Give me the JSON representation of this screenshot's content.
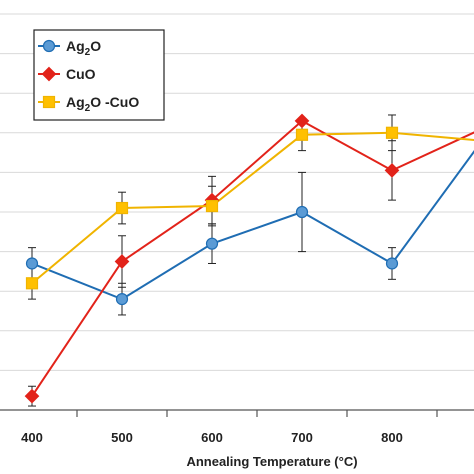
{
  "chart_data": {
    "type": "line",
    "title": "",
    "xlabel": "Annealing Temperature (°C)",
    "ylabel": "",
    "x": [
      400,
      500,
      600,
      700,
      800,
      900
    ],
    "x_tick_labels": [
      "400",
      "500",
      "600",
      "700",
      "800"
    ],
    "xlim": [
      370,
      900
    ],
    "ylim": [
      0,
      10
    ],
    "grid": "horizontal",
    "legend_position": "top-left",
    "series": [
      {
        "name": "Ag2O",
        "legend_main": "Ag",
        "legend_sub": "2",
        "legend_tail": "O",
        "color": "#1f6db3",
        "fill": "#5b9bd5",
        "marker": "circle",
        "values": [
          3.7,
          2.8,
          4.2,
          5.0,
          3.7,
          6.8
        ],
        "errors": [
          0.4,
          0.4,
          0.5,
          1.0,
          0.4,
          0.0
        ]
      },
      {
        "name": "CuO",
        "legend_main": "CuO",
        "legend_sub": "",
        "legend_tail": "",
        "color": "#e2231a",
        "fill": "#e2231a",
        "marker": "diamond",
        "values": [
          0.35,
          3.75,
          5.3,
          7.3,
          6.05,
          7.1
        ],
        "errors": [
          0.25,
          0.65,
          0.6,
          0.0,
          0.75,
          0.0
        ]
      },
      {
        "name": "Ag2O-CuO",
        "legend_main": "Ag",
        "legend_sub": "2",
        "legend_tail": "O -CuO",
        "color": "#f0b400",
        "fill": "#ffc000",
        "marker": "square",
        "values": [
          3.2,
          5.1,
          5.15,
          6.95,
          7.0,
          6.8
        ],
        "errors": [
          0.4,
          0.4,
          0.5,
          0.4,
          0.45,
          0.0
        ]
      }
    ]
  }
}
